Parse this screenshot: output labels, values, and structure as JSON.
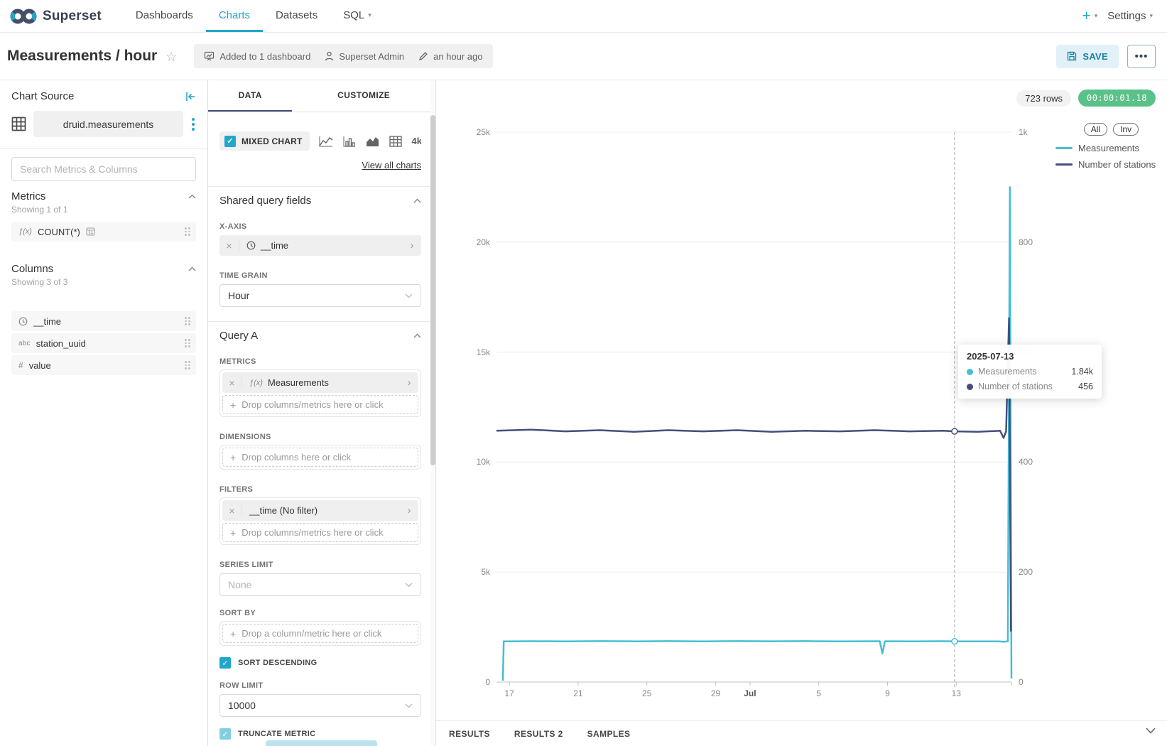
{
  "navbar": {
    "brand": "Superset",
    "items": [
      {
        "label": "Dashboards"
      },
      {
        "label": "Charts"
      },
      {
        "label": "Datasets"
      },
      {
        "label": "SQL"
      }
    ],
    "plus_label": "+",
    "settings_label": "Settings"
  },
  "header": {
    "title": "Measurements / hour",
    "added_to": "Added to 1 dashboard",
    "owner": "Superset Admin",
    "modified": "an hour ago",
    "save_label": "SAVE"
  },
  "chart_source": {
    "title": "Chart Source",
    "dataset": "druid.measurements",
    "search_placeholder": "Search Metrics & Columns",
    "metrics_title": "Metrics",
    "metrics_showing": "Showing 1 of 1",
    "metric_fn": "ƒ(x)",
    "metric_name": "COUNT(*)",
    "columns_title": "Columns",
    "columns_showing": "Showing 3 of 3",
    "abc_glyph": "abc",
    "hash_glyph": "#",
    "columns": [
      {
        "label": "__time"
      },
      {
        "label": "station_uuid"
      },
      {
        "label": "value"
      }
    ]
  },
  "control_panel": {
    "tabs": [
      "DATA",
      "CUSTOMIZE"
    ],
    "active_tab": "DATA",
    "viz_label": "MIXED CHART",
    "big_number_label": "4k",
    "view_all": "View all charts",
    "shared_title": "Shared query fields",
    "x_axis_label": "X-AXIS",
    "x_axis_value": "__time",
    "time_grain_label": "TIME GRAIN",
    "time_grain_value": "Hour",
    "query_title": "Query A",
    "metrics_label": "METRICS",
    "metric_fn": "ƒ(x)",
    "metric_value": "Measurements",
    "drop_cm_placeholder": "Drop columns/metrics here or click",
    "dimensions_label": "DIMENSIONS",
    "drop_c_placeholder": "Drop columns here or click",
    "filters_label": "FILTERS",
    "filter_value": "__time (No filter)",
    "series_limit_label": "SERIES LIMIT",
    "series_limit_value": "None",
    "sort_by_label": "SORT BY",
    "drop_single_placeholder": "Drop a column/metric here or click",
    "sort_descending_label": "SORT DESCENDING",
    "row_limit_label": "ROW LIMIT",
    "row_limit_value": "10000",
    "truncate_label": "TRUNCATE METRIC"
  },
  "chart_header": {
    "rows_badge": "723 rows",
    "timer": "00:00:01.18",
    "timer_color": "#5AC189",
    "legend_all": "All",
    "legend_inv": "Inv"
  },
  "tooltip": {
    "date": "2025-07-13",
    "rows": [
      {
        "label": "Measurements",
        "value": "1.84k",
        "color": "#45BED6"
      },
      {
        "label": "Number of stations",
        "value": "456",
        "color": "#454E7C"
      }
    ]
  },
  "results_bar": {
    "tabs": [
      "RESULTS",
      "RESULTS 2",
      "SAMPLES"
    ]
  },
  "chart_data": {
    "type": "line",
    "title": "Measurements / hour",
    "x_axis_type": "time, hourly (mid-June to mid-July 2025)",
    "x_domain": [
      0,
      29.96
    ],
    "x_ticks": [
      {
        "label": "17",
        "x": 0.75
      },
      {
        "label": "21",
        "x": 4.75
      },
      {
        "label": "25",
        "x": 8.75
      },
      {
        "label": "29",
        "x": 12.75
      },
      {
        "label": "Jul",
        "x": 14.75,
        "bold": true
      },
      {
        "label": "5",
        "x": 18.75
      },
      {
        "label": "9",
        "x": 22.75
      },
      {
        "label": "13",
        "x": 26.75
      }
    ],
    "y_left": {
      "ticks": [
        "0",
        "5k",
        "10k",
        "15k",
        "20k",
        "25k"
      ],
      "max": 25000
    },
    "y_right": {
      "ticks": [
        "0",
        "200",
        "400",
        "600",
        "800",
        "1k"
      ],
      "max": 1000
    },
    "grid": true,
    "legend_position": "top-right",
    "crosshair_x": 26.65,
    "series": [
      {
        "name": "Measurements",
        "axis": "left",
        "color": "#45BED6",
        "points": [
          [
            0.37,
            60
          ],
          [
            0.42,
            1850
          ],
          [
            2,
            1858
          ],
          [
            4,
            1850
          ],
          [
            6,
            1862
          ],
          [
            8,
            1852
          ],
          [
            10,
            1860
          ],
          [
            12,
            1851
          ],
          [
            14,
            1859
          ],
          [
            16,
            1853
          ],
          [
            18,
            1861
          ],
          [
            20,
            1850
          ],
          [
            22.3,
            1856
          ],
          [
            22.45,
            1300
          ],
          [
            22.6,
            1855
          ],
          [
            24,
            1852
          ],
          [
            26,
            1858
          ],
          [
            26.65,
            1850
          ],
          [
            28,
            1846
          ],
          [
            29.2,
            1852
          ],
          [
            29.5,
            1832
          ],
          [
            29.75,
            1846
          ],
          [
            29.87,
            22500
          ],
          [
            29.96,
            160
          ]
        ]
      },
      {
        "name": "Number of stations",
        "axis": "right",
        "color": "#454E7C",
        "points": [
          [
            0,
            457
          ],
          [
            2,
            459
          ],
          [
            4,
            456
          ],
          [
            6,
            458
          ],
          [
            8,
            455
          ],
          [
            10,
            458
          ],
          [
            12,
            456
          ],
          [
            14,
            458
          ],
          [
            16,
            455
          ],
          [
            18,
            457
          ],
          [
            20,
            456
          ],
          [
            22,
            458
          ],
          [
            24,
            456
          ],
          [
            26,
            457
          ],
          [
            26.65,
            456
          ],
          [
            28,
            455
          ],
          [
            29.3,
            457
          ],
          [
            29.5,
            444
          ],
          [
            29.65,
            456
          ],
          [
            29.82,
            662
          ],
          [
            29.93,
            92
          ]
        ]
      }
    ],
    "markers": [
      {
        "x": 26.65,
        "value": 1850,
        "axis": "left",
        "color": "#45BED6"
      },
      {
        "x": 26.65,
        "value": 456,
        "axis": "right",
        "color": "#454E7C"
      }
    ]
  }
}
